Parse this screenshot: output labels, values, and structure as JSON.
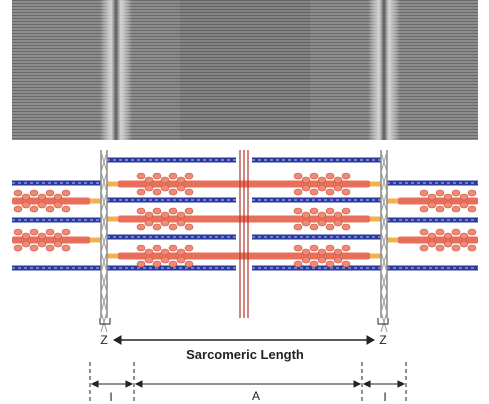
{
  "labels": {
    "z_left": "Z",
    "z_right": "Z",
    "sarcomere": "Sarcomeric Length",
    "i_left": "I",
    "a_band": "A",
    "i_right": "I"
  }
}
